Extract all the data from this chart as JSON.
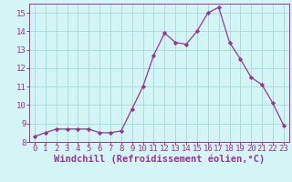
{
  "x": [
    0,
    1,
    2,
    3,
    4,
    5,
    6,
    7,
    8,
    9,
    10,
    11,
    12,
    13,
    14,
    15,
    16,
    17,
    18,
    19,
    20,
    21,
    22,
    23
  ],
  "y": [
    8.3,
    8.5,
    8.7,
    8.7,
    8.7,
    8.7,
    8.5,
    8.5,
    8.6,
    9.8,
    11.0,
    12.7,
    13.9,
    13.4,
    13.3,
    14.0,
    15.0,
    15.3,
    13.4,
    12.5,
    11.5,
    11.1,
    10.1,
    8.9
  ],
  "line_color": "#993399",
  "marker_color": "#993399",
  "bg_color": "#d4f5f5",
  "grid_color": "#aadddd",
  "axis_color": "#993399",
  "tick_color": "#993399",
  "xlabel": "Windchill (Refroidissement éolien,°C)",
  "ylim": [
    8,
    15.5
  ],
  "xlim": [
    -0.5,
    23.5
  ],
  "yticks": [
    8,
    9,
    10,
    11,
    12,
    13,
    14,
    15
  ],
  "xticks": [
    0,
    1,
    2,
    3,
    4,
    5,
    6,
    7,
    8,
    9,
    10,
    11,
    12,
    13,
    14,
    15,
    16,
    17,
    18,
    19,
    20,
    21,
    22,
    23
  ],
  "tick_fontsize": 6.5,
  "label_fontsize": 7.5
}
